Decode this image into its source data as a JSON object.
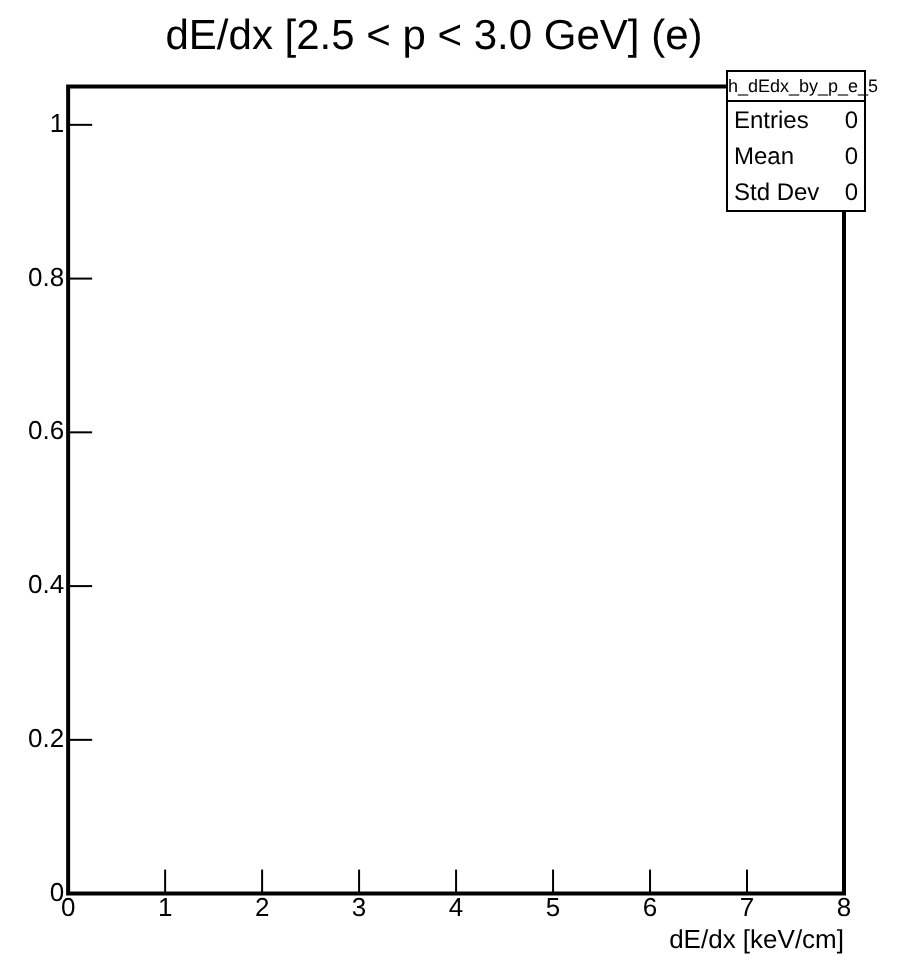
{
  "chart_data": {
    "type": "histogram",
    "title": "dE/dx [2.5 < p < 3.0 GeV] (e)",
    "xlabel": "dE/dx [keV/cm]",
    "xlim": [
      0,
      8
    ],
    "xticks": [
      0,
      1,
      2,
      3,
      4,
      5,
      6,
      7,
      8
    ],
    "ylim": [
      0,
      1.05
    ],
    "yticks": [
      0,
      0.2,
      0.4,
      0.6,
      0.8,
      1
    ],
    "grid": false,
    "legend": false,
    "annotations": [
      "h_dEdx_by_p_e_5",
      "Entries",
      "0",
      "Mean",
      "0",
      "Std Dev",
      "0"
    ]
  }
}
